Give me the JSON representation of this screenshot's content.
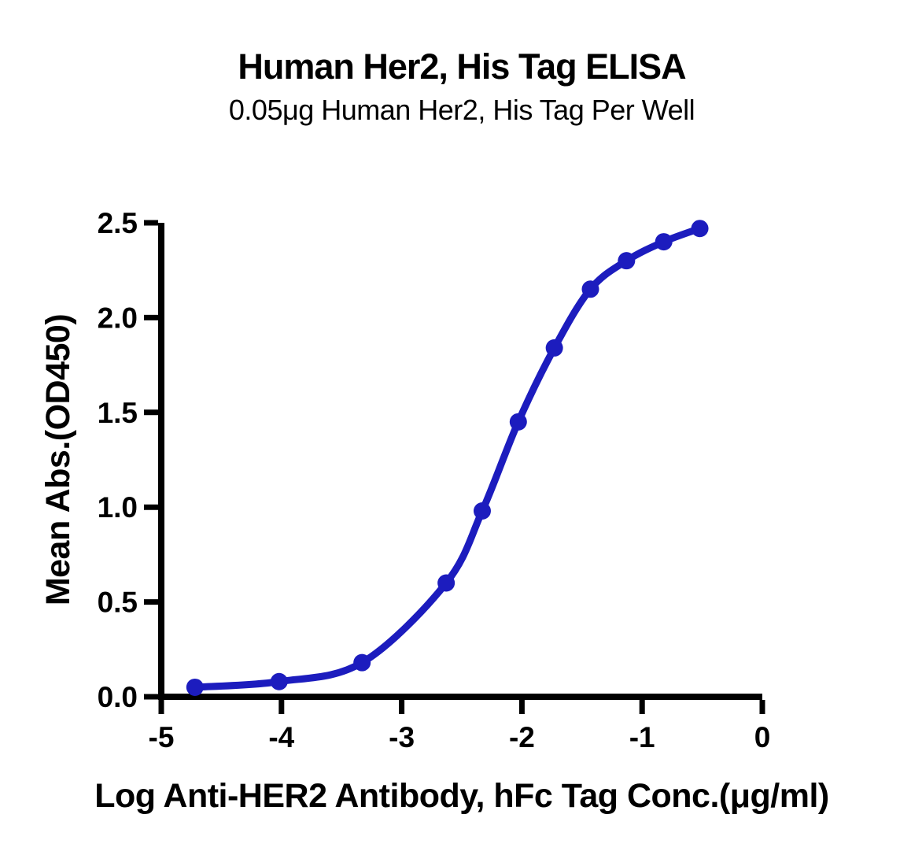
{
  "chart_data": {
    "type": "scatter",
    "title": "Human Her2, His Tag ELISA",
    "subtitle": "0.05μg Human Her2, His Tag Per Well",
    "xlabel": "Log Anti-HER2 Antibody, hFc Tag Conc.(μg/ml)",
    "ylabel": "Mean Abs.(OD450)",
    "xlim": [
      -5,
      0
    ],
    "ylim": [
      0,
      2.5
    ],
    "xticks": [
      -5,
      -4,
      -3,
      -2,
      -1,
      0
    ],
    "xtick_labels": [
      "-5",
      "-4",
      "-3",
      "-2",
      "-1",
      "0"
    ],
    "yticks": [
      0,
      0.5,
      1,
      1.5,
      2,
      2.5
    ],
    "ytick_labels": [
      "0.0",
      "0.5",
      "1.0",
      "1.5",
      "2.0",
      "2.5"
    ],
    "grid": false,
    "legend": "none",
    "axis_color": "#000000",
    "background_color": "#ffffff",
    "series": [
      {
        "name": "Anti-HER2 Antibody, hFc Tag",
        "color": "#1C1CBE",
        "marker": "circle",
        "line": "smooth-sigmoid-fit",
        "x": [
          -4.72,
          -4.02,
          -3.33,
          -2.63,
          -2.33,
          -2.03,
          -1.73,
          -1.43,
          -1.13,
          -0.82,
          -0.52
        ],
        "y": [
          0.05,
          0.08,
          0.18,
          0.6,
          0.98,
          1.45,
          1.84,
          2.15,
          2.3,
          2.4,
          2.47
        ]
      }
    ]
  }
}
